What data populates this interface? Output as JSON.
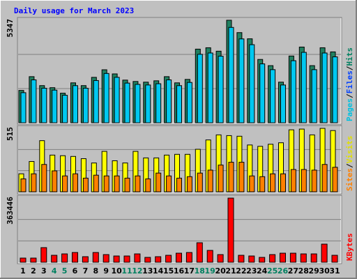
{
  "chart_data": [
    {
      "type": "bar",
      "title": "Daily usage for March 2023",
      "ylim": [
        0,
        5347
      ],
      "yticks": [
        5347
      ],
      "axis_label": [
        {
          "text": "Pages",
          "color": "#00c0e0"
        },
        {
          "text": "/",
          "color": "#000000"
        },
        {
          "text": "Files",
          "color": "#0040ff"
        },
        {
          "text": "/",
          "color": "#000000"
        },
        {
          "text": "Hits",
          "color": "#008060"
        }
      ],
      "series": [
        {
          "name": "Hits",
          "color": "#208060",
          "values": [
            1687,
            2405,
            1938,
            1830,
            1543,
            2082,
            1938,
            2369,
            2764,
            2548,
            2225,
            2153,
            2118,
            2189,
            2405,
            2082,
            2261,
            3840,
            3912,
            3733,
            5347,
            4702,
            4379,
            3302,
            2979,
            2118,
            3481,
            3948,
            2979,
            3912,
            3697
          ]
        },
        {
          "name": "Pages",
          "color": "#00c8f0",
          "values": [
            1569,
            2237,
            1802,
            1702,
            1435,
            1936,
            1802,
            2203,
            2571,
            2370,
            2069,
            2002,
            1970,
            2036,
            2237,
            1936,
            2103,
            3571,
            3638,
            3472,
            4973,
            4373,
            4072,
            3071,
            2770,
            1970,
            3237,
            3672,
            2770,
            3638,
            3438
          ]
        }
      ]
    },
    {
      "type": "bar",
      "ylim": [
        0,
        515
      ],
      "yticks": [
        515
      ],
      "axis_label": [
        {
          "text": "Sites",
          "color": "#ff8000"
        },
        {
          "text": "/",
          "color": "#000000"
        },
        {
          "text": "Visits",
          "color": "#e0e000"
        }
      ],
      "series": [
        {
          "name": "Visits",
          "color": "#ffff00",
          "values": [
            146,
            246,
            415,
            298,
            293,
            287,
            269,
            234,
            328,
            252,
            234,
            328,
            275,
            275,
            298,
            304,
            304,
            345,
            421,
            462,
            456,
            451,
            380,
            369,
            386,
            398,
            503,
            509,
            462,
            515,
            497
          ]
        },
        {
          "name": "Sites",
          "color": "#ff8000",
          "values": [
            105,
            146,
            222,
            170,
            129,
            146,
            111,
            135,
            129,
            129,
            111,
            129,
            105,
            152,
            129,
            111,
            123,
            152,
            176,
            217,
            240,
            240,
            129,
            123,
            146,
            146,
            181,
            181,
            176,
            222,
            199
          ]
        }
      ]
    },
    {
      "type": "bar",
      "ylim": [
        0,
        363446
      ],
      "yticks": [
        363446
      ],
      "axis_label": [
        {
          "text": "KBytes",
          "color": "#ff0000"
        }
      ],
      "categories": [
        "1",
        "2",
        "3",
        "4",
        "5",
        "6",
        "7",
        "8",
        "9",
        "10",
        "11",
        "12",
        "13",
        "14",
        "15",
        "16",
        "17",
        "18",
        "19",
        "20",
        "21",
        "22",
        "23",
        "24",
        "25",
        "26",
        "27",
        "28",
        "29",
        "30",
        "31"
      ],
      "category_colors": [
        "#000000",
        "#000000",
        "#000000",
        "#008060",
        "#008060",
        "#000000",
        "#000000",
        "#000000",
        "#000000",
        "#000000",
        "#008060",
        "#008060",
        "#000000",
        "#000000",
        "#000000",
        "#000000",
        "#000000",
        "#008060",
        "#008060",
        "#000000",
        "#000000",
        "#000000",
        "#000000",
        "#000000",
        "#008060",
        "#008060",
        "#000000",
        "#000000",
        "#000000",
        "#000000",
        "#000000"
      ],
      "series": [
        {
          "name": "KBytes",
          "color": "#ff0000",
          "values": [
            23703,
            23703,
            82961,
            39505,
            47406,
            55307,
            31604,
            55307,
            43456,
            35555,
            35555,
            47406,
            27654,
            31604,
            39505,
            51357,
            55307,
            110614,
            67159,
            43456,
            363446,
            39505,
            35555,
            27654,
            43456,
            51357,
            51357,
            47406,
            47406,
            102713,
            39505
          ]
        }
      ]
    }
  ]
}
